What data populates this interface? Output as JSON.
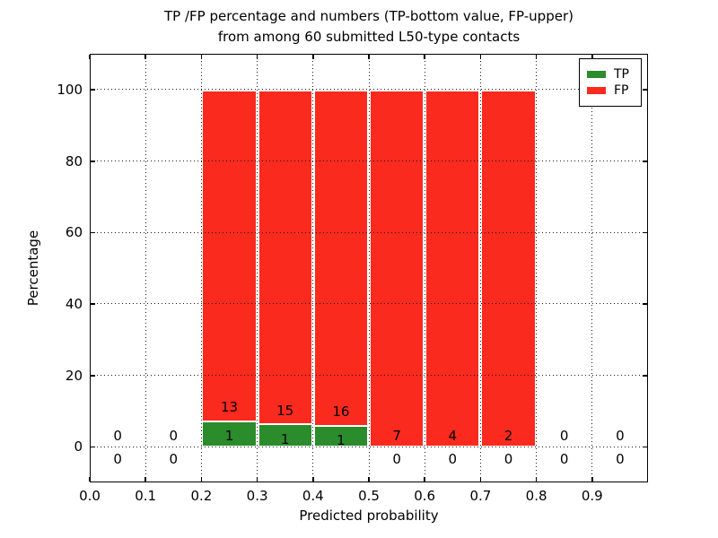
{
  "figure": {
    "title_line1": "TP /FP percentage and numbers (TP-bottom value, FP-upper)",
    "title_line2": "from among 60 submitted L50-type contacts"
  },
  "chart_data": {
    "type": "bar",
    "stacked": true,
    "title": "TP /FP percentage and numbers (TP-bottom value, FP-upper) from among 60 submitted L50-type contacts",
    "xlabel": "Predicted probability",
    "ylabel": "Percentage",
    "xlim": [
      0.0,
      1.0
    ],
    "ylim": [
      -10,
      110
    ],
    "xtick_values": [
      0.0,
      0.1,
      0.2,
      0.3,
      0.4,
      0.5,
      0.6,
      0.7,
      0.8,
      0.9
    ],
    "xtick_labels": [
      "0.0",
      "0.1",
      "0.2",
      "0.3",
      "0.4",
      "0.5",
      "0.6",
      "0.7",
      "0.8",
      "0.9"
    ],
    "ytick_values": [
      0,
      20,
      40,
      60,
      80,
      100
    ],
    "ytick_labels": [
      "0",
      "20",
      "40",
      "60",
      "80",
      "100"
    ],
    "grid": {
      "style": "dotted",
      "drawn_over_bars": true
    },
    "colors": {
      "tp": "#2a8c2b",
      "fp": "#fa2a1e",
      "bar_edge": "#ffffff"
    },
    "legend": {
      "position": "upper-right",
      "entries": [
        {
          "label": "TP",
          "color": "#2a8c2b"
        },
        {
          "label": "FP",
          "color": "#fa2a1e"
        }
      ]
    },
    "bin_width": 0.1,
    "bins": [
      {
        "x0": 0.0,
        "tp": 0,
        "fp": 0,
        "tp_pct": 0,
        "fp_pct": 0
      },
      {
        "x0": 0.1,
        "tp": 0,
        "fp": 0,
        "tp_pct": 0,
        "fp_pct": 0
      },
      {
        "x0": 0.2,
        "tp": 1,
        "fp": 13,
        "tp_pct": 7.14,
        "fp_pct": 92.86
      },
      {
        "x0": 0.3,
        "tp": 1,
        "fp": 15,
        "tp_pct": 6.25,
        "fp_pct": 93.75
      },
      {
        "x0": 0.4,
        "tp": 1,
        "fp": 16,
        "tp_pct": 5.88,
        "fp_pct": 94.12
      },
      {
        "x0": 0.5,
        "tp": 0,
        "fp": 7,
        "tp_pct": 0,
        "fp_pct": 100
      },
      {
        "x0": 0.6,
        "tp": 0,
        "fp": 4,
        "tp_pct": 0,
        "fp_pct": 100
      },
      {
        "x0": 0.7,
        "tp": 0,
        "fp": 2,
        "tp_pct": 0,
        "fp_pct": 100
      },
      {
        "x0": 0.8,
        "tp": 0,
        "fp": 0,
        "tp_pct": 0,
        "fp_pct": 0
      },
      {
        "x0": 0.9,
        "tp": 0,
        "fp": 0,
        "tp_pct": 0,
        "fp_pct": 0
      }
    ]
  }
}
